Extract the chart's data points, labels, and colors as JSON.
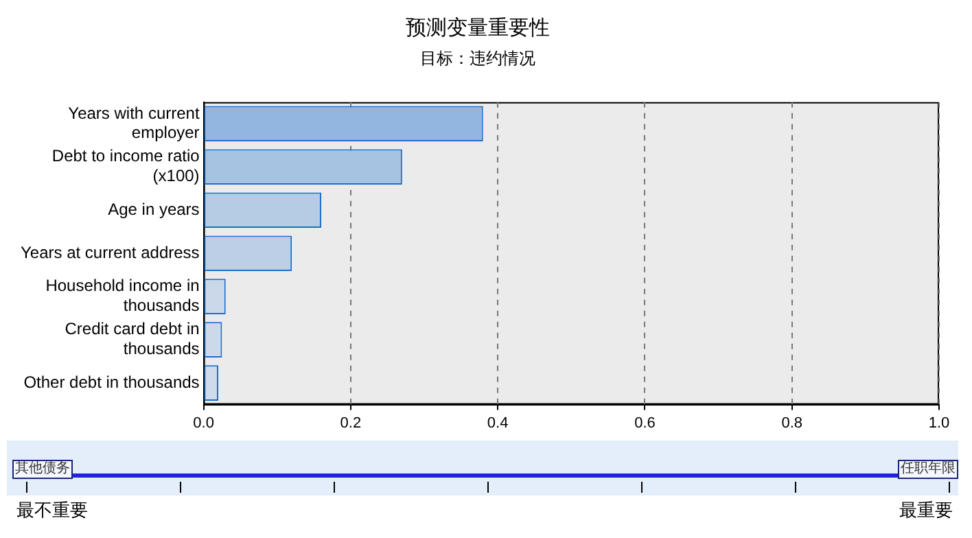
{
  "chart_data": {
    "type": "bar",
    "orientation": "horizontal",
    "title": "预测变量重要性",
    "subtitle": "目标：违约情况",
    "categories": [
      "Years with current employer",
      "Debt to income ratio (x100)",
      "Age in years",
      "Years at current address",
      "Household income in thousands",
      "Credit card debt in thousands",
      "Other debt in thousands"
    ],
    "values": [
      0.38,
      0.27,
      0.16,
      0.12,
      0.03,
      0.025,
      0.02
    ],
    "colors": [
      "#92b6df",
      "#a6c3e2",
      "#b6cce5",
      "#bccfe6",
      "#cbd8e9",
      "#cdd9e9",
      "#cfdaea"
    ],
    "xlim": [
      0,
      1
    ],
    "xticks": [
      {
        "value": 0,
        "label": "0.0"
      },
      0.2,
      0.4,
      0.6,
      0.8,
      {
        "value": 1,
        "label": "1.0"
      }
    ],
    "grid": "x",
    "legend": false,
    "annotations": [
      "其他债务",
      "任职年限",
      "最不重要",
      "最重要"
    ]
  }
}
